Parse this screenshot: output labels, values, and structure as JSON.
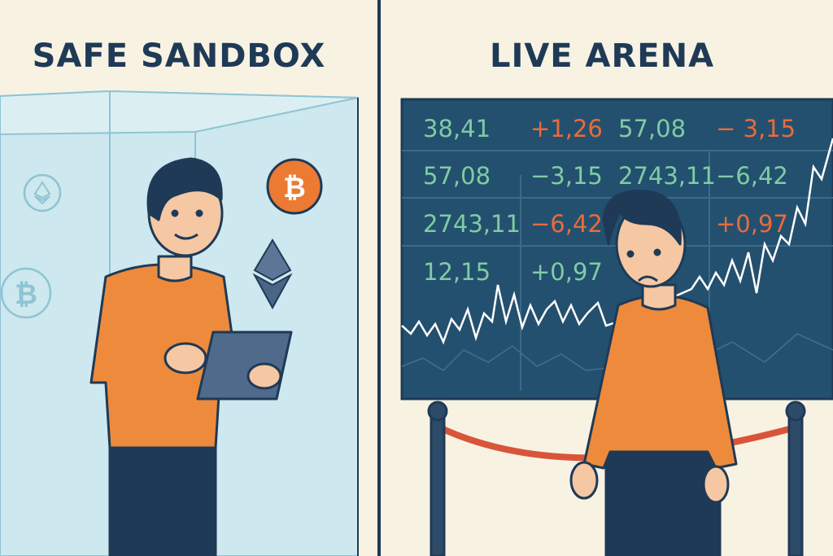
{
  "left_panel": {
    "title": "SAFE SANDBOX",
    "icons": [
      "ethereum-coin-icon",
      "bitcoin-coin-icon",
      "bitcoin-coin-icon",
      "ethereum-diamond-icon"
    ]
  },
  "right_panel": {
    "title": "LIVE ARENA",
    "ticker_board": {
      "rows": [
        [
          "38,41",
          "+1,26",
          "57,08",
          "− 3,15"
        ],
        [
          "57,08",
          "−3,15",
          "2743,11",
          "−6,42"
        ],
        [
          "2743,11",
          "−6,42",
          "",
          "+0,97"
        ],
        [
          "12,15",
          "+0,97",
          "",
          ""
        ]
      ],
      "row_colors": [
        [
          "#7fcca3",
          "#ea6a3a",
          "#7fcca3",
          "#ea6a3a"
        ],
        [
          "#7fcca3",
          "#7fcca3",
          "#7fcca3",
          "#7fcca3"
        ],
        [
          "#7fcca3",
          "#ea6a3a",
          "#7fcca3",
          "#ea6a3a"
        ],
        [
          "#7fcca3",
          "#7fcca3",
          "#7fcca3",
          "#7fcca3"
        ]
      ]
    }
  },
  "colors": {
    "background": "#f8f2e2",
    "navy": "#1e3a56",
    "glass": "#cde8ee",
    "board": "#24506f",
    "shirt": "#ee8a3c",
    "positive": "#7fcca3",
    "negative": "#ea6a3a",
    "rope": "#d9553a"
  }
}
